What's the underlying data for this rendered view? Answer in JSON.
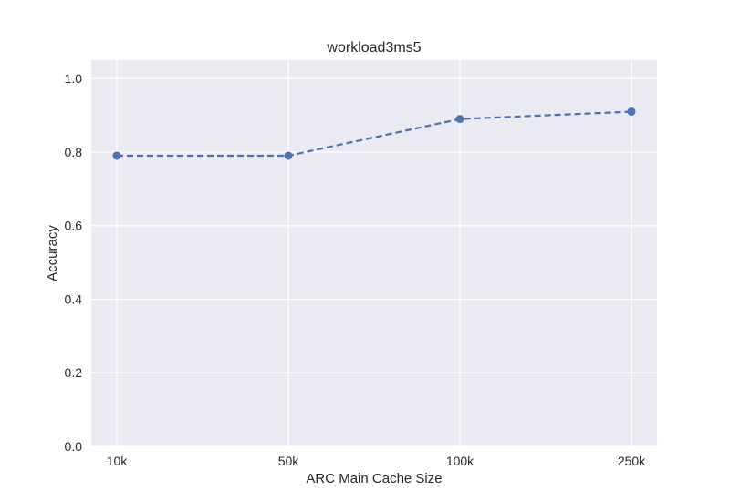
{
  "chart_data": {
    "type": "line",
    "title": "workload3ms5",
    "xlabel": "ARC Main Cache Size",
    "ylabel": "Accuracy",
    "categories": [
      "10k",
      "50k",
      "100k",
      "250k"
    ],
    "series": [
      {
        "values": [
          0.79,
          0.79,
          0.89,
          0.91
        ],
        "color": "#4c72b0",
        "line_style": "dashed",
        "marker": "circle"
      }
    ],
    "ylim": [
      0,
      1.05
    ],
    "yticks": [
      0.0,
      0.2,
      0.4,
      0.6,
      0.8,
      1.0
    ],
    "ytick_labels": [
      "0.0",
      "0.2",
      "0.4",
      "0.6",
      "0.8",
      "1.0"
    ],
    "grid": true,
    "legend": "none",
    "style": "seaborn-darkgrid"
  }
}
